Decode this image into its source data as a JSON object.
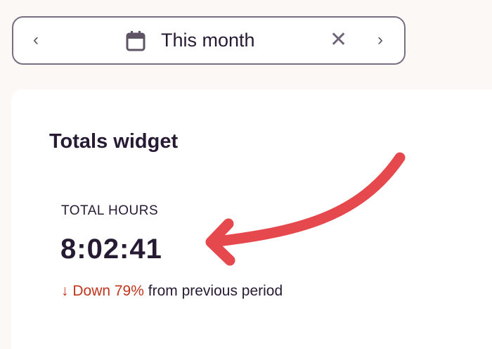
{
  "date_picker": {
    "label": "This month",
    "prev_icon": "chevron-left-icon",
    "next_icon": "chevron-right-icon",
    "calendar_icon": "calendar-icon",
    "clear_icon": "close-icon"
  },
  "widget": {
    "title": "Totals widget",
    "metric_label": "TOTAL HOURS",
    "metric_value": "8:02:41",
    "change_arrow": "↓",
    "change_text": "Down 79%",
    "change_suffix": "from previous period",
    "change_color": "#c0341d"
  },
  "annotation": {
    "arrow_color": "#e5484d"
  }
}
